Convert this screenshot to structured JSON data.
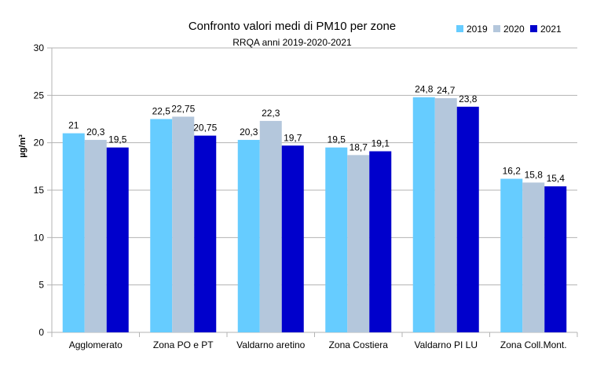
{
  "chart_data": {
    "type": "bar",
    "title": "Confronto valori medi di PM10 per zone",
    "subtitle": "RRQA anni 2019-2020-2021",
    "ylabel": "µg/m³",
    "xlabel": "",
    "ylim": [
      0,
      30
    ],
    "yticks": [
      "0",
      "5",
      "10",
      "15",
      "20",
      "25",
      "30"
    ],
    "grid": true,
    "legend_position": "top-right",
    "categories": [
      "Agglomerato",
      "Zona PO e PT",
      "Valdarno aretino",
      "Zona Costiera",
      "Valdarno PI LU",
      "Zona Coll.Mont."
    ],
    "series": [
      {
        "name": "2019",
        "color": "#66ccff",
        "values": [
          21,
          22.5,
          20.3,
          19.5,
          24.8,
          16.2
        ],
        "labels": [
          "21",
          "22,5",
          "20,3",
          "19,5",
          "24,8",
          "16,2"
        ]
      },
      {
        "name": "2020",
        "color": "#b4c7dc",
        "values": [
          20.3,
          22.75,
          22.3,
          18.7,
          24.7,
          15.8
        ],
        "labels": [
          "20,3",
          "22,75",
          "22,3",
          "18,7",
          "24,7",
          "15,8"
        ]
      },
      {
        "name": "2021",
        "color": "#0000cc",
        "values": [
          19.5,
          20.75,
          19.7,
          19.1,
          23.8,
          15.4
        ],
        "labels": [
          "19,5",
          "20,75",
          "19,7",
          "19,1",
          "23,8",
          "15,4"
        ]
      }
    ]
  }
}
